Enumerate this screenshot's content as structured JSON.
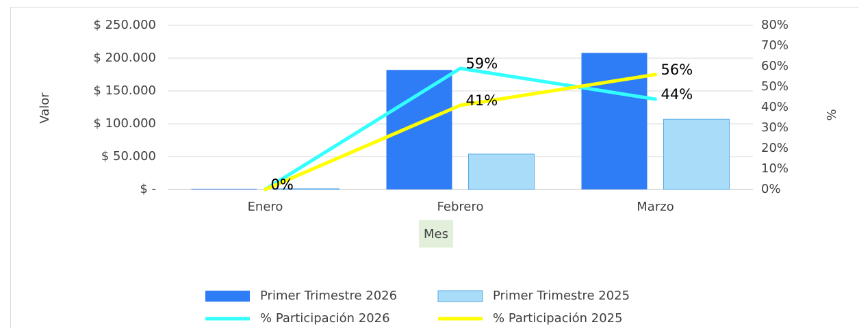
{
  "chart_data": {
    "type": "bar",
    "x_label": "Mes",
    "y_label": "Valor",
    "y2_label": "%",
    "categories": [
      "Enero",
      "Febrero",
      "Marzo"
    ],
    "series": [
      {
        "name": "Primer Trimestre  2026",
        "type": "bar",
        "color": "#2e7cf6",
        "values": [
          0,
          182000,
          208000
        ]
      },
      {
        "name": "Primer Trimestre  2025",
        "type": "bar",
        "color": "#a8dcf8",
        "values": [
          0,
          54000,
          107000
        ]
      },
      {
        "name": "% Participación 2026",
        "type": "line",
        "axis": "y2",
        "color": "#33ffff",
        "values": [
          0,
          59,
          44
        ],
        "value_labels": [
          "0%",
          "59%",
          "44%"
        ]
      },
      {
        "name": "% Participación 2025",
        "type": "line",
        "axis": "y2",
        "color": "#ffff00",
        "values": [
          0,
          41,
          56
        ],
        "value_labels": [
          "0%",
          "41%",
          "56%"
        ]
      }
    ],
    "ylim": [
      0,
      250000
    ],
    "yticks": [
      {
        "value": 0,
        "label": "$ -"
      },
      {
        "value": 50000,
        "label": "$ 50.000"
      },
      {
        "value": 100000,
        "label": "$ 100.000"
      },
      {
        "value": 150000,
        "label": "$ 150.000"
      },
      {
        "value": 200000,
        "label": "$ 200.000"
      },
      {
        "value": 250000,
        "label": "$ 250.000"
      }
    ],
    "y2lim": [
      0,
      80
    ],
    "y2ticks": [
      {
        "value": 0,
        "label": "0%"
      },
      {
        "value": 10,
        "label": "10%"
      },
      {
        "value": 20,
        "label": "20%"
      },
      {
        "value": 30,
        "label": "30%"
      },
      {
        "value": 40,
        "label": "40%"
      },
      {
        "value": 50,
        "label": "50%"
      },
      {
        "value": 60,
        "label": "60%"
      },
      {
        "value": 70,
        "label": "70%"
      },
      {
        "value": 80,
        "label": "80%"
      }
    ],
    "grid": true,
    "legend": "bottom"
  }
}
